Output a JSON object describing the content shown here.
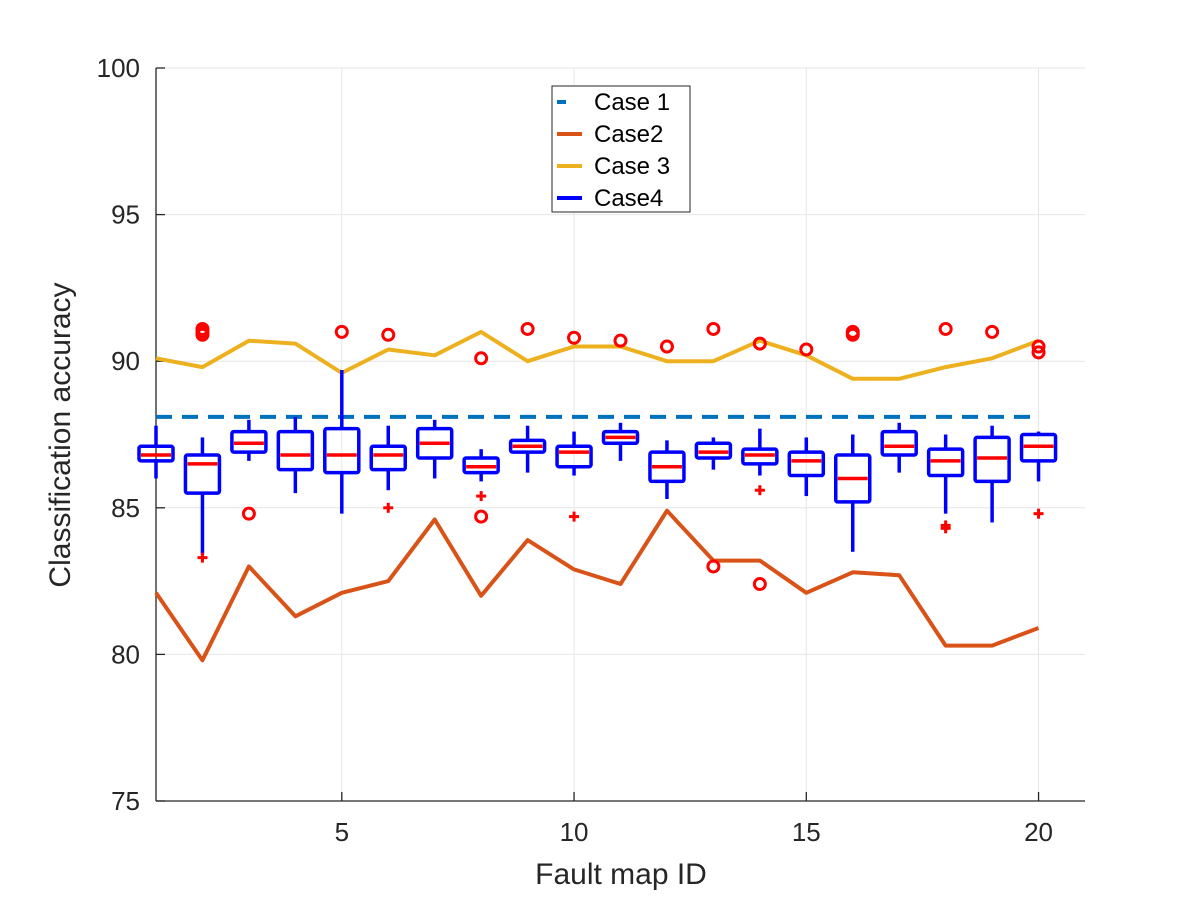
{
  "chart_data": {
    "type": "line",
    "title": "",
    "xlabel": "Fault map ID",
    "ylabel": "Classification accuracy",
    "xlim": [
      1,
      21
    ],
    "ylim": [
      75,
      100
    ],
    "xticks": [
      5,
      10,
      15,
      20
    ],
    "yticks": [
      75,
      80,
      85,
      90,
      95,
      100
    ],
    "grid": true,
    "legend_position": "top-center",
    "x": [
      1,
      2,
      3,
      4,
      5,
      6,
      7,
      8,
      9,
      10,
      11,
      12,
      13,
      14,
      15,
      16,
      17,
      18,
      19,
      20
    ],
    "series": [
      {
        "name": "Case 1",
        "style": "dashed",
        "color": "#0072BD",
        "values": [
          88.1,
          88.1,
          88.1,
          88.1,
          88.1,
          88.1,
          88.1,
          88.1,
          88.1,
          88.1,
          88.1,
          88.1,
          88.1,
          88.1,
          88.1,
          88.1,
          88.1,
          88.1,
          88.1,
          88.1
        ]
      },
      {
        "name": "Case2",
        "style": "solid",
        "color": "#D95319",
        "values": [
          82.1,
          79.8,
          83.0,
          81.3,
          82.1,
          82.5,
          84.6,
          82.0,
          83.9,
          82.9,
          82.4,
          84.9,
          83.2,
          83.2,
          82.1,
          82.8,
          82.7,
          80.3,
          80.3,
          80.9
        ]
      },
      {
        "name": "Case 3",
        "style": "solid",
        "color": "#EDB120",
        "values": [
          90.1,
          89.8,
          90.7,
          90.6,
          89.6,
          90.4,
          90.2,
          91.0,
          90.0,
          90.5,
          90.5,
          90.0,
          90.0,
          90.7,
          90.2,
          89.4,
          89.4,
          89.8,
          90.1,
          90.7
        ]
      },
      {
        "name": "Case4",
        "style": "boxplot",
        "color": "#0000FF",
        "median_color": "#FF0000",
        "boxes": [
          {
            "x": 1,
            "whisker_low": 86.0,
            "q1": 86.6,
            "median": 86.8,
            "q3": 87.1,
            "whisker_high": 87.8,
            "outliers": []
          },
          {
            "x": 2,
            "whisker_low": 83.4,
            "q1": 85.5,
            "median": 86.5,
            "q3": 86.8,
            "whisker_high": 87.4,
            "outliers": [
              83.3,
              91.1,
              91.0,
              90.9
            ]
          },
          {
            "x": 3,
            "whisker_low": 86.6,
            "q1": 86.9,
            "median": 87.2,
            "q3": 87.6,
            "whisker_high": 88.0,
            "outliers": [
              84.8
            ]
          },
          {
            "x": 4,
            "whisker_low": 85.5,
            "q1": 86.3,
            "median": 86.8,
            "q3": 87.6,
            "whisker_high": 88.1,
            "outliers": []
          },
          {
            "x": 5,
            "whisker_low": 84.8,
            "q1": 86.2,
            "median": 86.8,
            "q3": 87.7,
            "whisker_high": 89.7,
            "outliers": [
              91.0
            ]
          },
          {
            "x": 6,
            "whisker_low": 85.6,
            "q1": 86.3,
            "median": 86.8,
            "q3": 87.1,
            "whisker_high": 87.8,
            "outliers": [
              85.0,
              90.9
            ]
          },
          {
            "x": 7,
            "whisker_low": 86.0,
            "q1": 86.7,
            "median": 87.2,
            "q3": 87.7,
            "whisker_high": 88.0,
            "outliers": []
          },
          {
            "x": 8,
            "whisker_low": 85.9,
            "q1": 86.2,
            "median": 86.4,
            "q3": 86.7,
            "whisker_high": 87.0,
            "outliers": [
              85.4,
              84.7,
              90.1
            ]
          },
          {
            "x": 9,
            "whisker_low": 86.2,
            "q1": 86.9,
            "median": 87.1,
            "q3": 87.3,
            "whisker_high": 87.8,
            "outliers": [
              91.1
            ]
          },
          {
            "x": 10,
            "whisker_low": 86.1,
            "q1": 86.4,
            "median": 86.9,
            "q3": 87.1,
            "whisker_high": 87.6,
            "outliers": [
              84.7,
              90.8
            ]
          },
          {
            "x": 11,
            "whisker_low": 86.6,
            "q1": 87.2,
            "median": 87.4,
            "q3": 87.6,
            "whisker_high": 87.9,
            "outliers": [
              90.7
            ]
          },
          {
            "x": 12,
            "whisker_low": 85.3,
            "q1": 85.9,
            "median": 86.4,
            "q3": 86.9,
            "whisker_high": 87.3,
            "outliers": [
              90.5
            ]
          },
          {
            "x": 13,
            "whisker_low": 86.3,
            "q1": 86.7,
            "median": 86.9,
            "q3": 87.2,
            "whisker_high": 87.4,
            "outliers": [
              83.0,
              91.1
            ]
          },
          {
            "x": 14,
            "whisker_low": 86.1,
            "q1": 86.5,
            "median": 86.8,
            "q3": 87.0,
            "whisker_high": 87.7,
            "outliers": [
              85.6,
              82.4,
              90.6
            ]
          },
          {
            "x": 15,
            "whisker_low": 85.4,
            "q1": 86.1,
            "median": 86.6,
            "q3": 86.9,
            "whisker_high": 87.4,
            "outliers": [
              90.4
            ]
          },
          {
            "x": 16,
            "whisker_low": 83.5,
            "q1": 85.2,
            "median": 86.0,
            "q3": 86.8,
            "whisker_high": 87.5,
            "outliers": [
              91.0,
              90.9
            ]
          },
          {
            "x": 17,
            "whisker_low": 86.2,
            "q1": 86.8,
            "median": 87.1,
            "q3": 87.6,
            "whisker_high": 87.9,
            "outliers": []
          },
          {
            "x": 18,
            "whisker_low": 84.8,
            "q1": 86.1,
            "median": 86.6,
            "q3": 87.0,
            "whisker_high": 87.5,
            "outliers": [
              84.4,
              84.3,
              91.1
            ]
          },
          {
            "x": 19,
            "whisker_low": 84.5,
            "q1": 85.9,
            "median": 86.7,
            "q3": 87.4,
            "whisker_high": 87.8,
            "outliers": [
              91.0
            ]
          },
          {
            "x": 20,
            "whisker_low": 85.9,
            "q1": 86.6,
            "median": 87.1,
            "q3": 87.5,
            "whisker_high": 87.6,
            "outliers": [
              84.8,
              90.5,
              90.3
            ]
          }
        ]
      }
    ]
  }
}
